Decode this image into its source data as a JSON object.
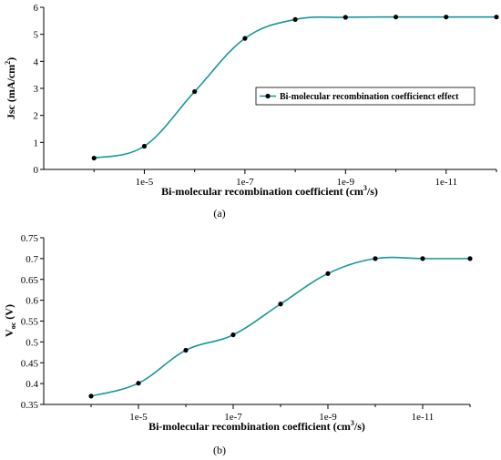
{
  "chart_data": [
    {
      "type": "line",
      "panel_label": "(a)",
      "xlabel_text": "Bi-molecular recombination coefficient (cm",
      "xlabel_sup": "3",
      "xlabel_tail": "/s)",
      "ylabel_text": "Jsc (mA/cm",
      "ylabel_sup": "2",
      "ylabel_tail": ")",
      "x": [
        -4,
        -5,
        -6,
        -7,
        -8,
        -9,
        -10,
        -11,
        -12
      ],
      "x_ticks": [
        {
          "value": -5,
          "label": "1e-5"
        },
        {
          "value": -7,
          "label": "1e-7"
        },
        {
          "value": -9,
          "label": "1e-9"
        },
        {
          "value": -11,
          "label": "1e-11"
        }
      ],
      "xlim": [
        -3,
        -12
      ],
      "ylim": [
        0,
        6
      ],
      "y_ticks": [
        "0",
        "1",
        "2",
        "3",
        "4",
        "5",
        "6"
      ],
      "series": [
        {
          "name": "Bi-molecular recombination coefficienct effect",
          "values": [
            0.42,
            0.86,
            2.88,
            4.85,
            5.55,
            5.63,
            5.64,
            5.64,
            5.64
          ]
        }
      ],
      "legend": "right-middle",
      "grid": false,
      "color": "#17969b"
    },
    {
      "type": "line",
      "panel_label": "(b)",
      "xlabel_text": "Bi-molecular recombination coefficient (cm",
      "xlabel_sup": "3",
      "xlabel_tail": "/s)",
      "ylabel_text": "V",
      "ylabel_sub": "oc",
      "ylabel_tail": " (V)",
      "x": [
        -4,
        -5,
        -6,
        -7,
        -8,
        -9,
        -10,
        -11,
        -12
      ],
      "x_ticks": [
        {
          "value": -5,
          "label": "1e-5"
        },
        {
          "value": -7,
          "label": "1e-7"
        },
        {
          "value": -9,
          "label": "1e-9"
        },
        {
          "value": -11,
          "label": "1e-11"
        }
      ],
      "xlim": [
        -3,
        -12
      ],
      "ylim": [
        0.35,
        0.75
      ],
      "y_ticks": [
        "0.35",
        "0.4",
        "0.45",
        "0.5",
        "0.55",
        "0.6",
        "0.65",
        "0.7",
        "0.75"
      ],
      "series": [
        {
          "values": [
            0.37,
            0.401,
            0.48,
            0.517,
            0.591,
            0.664,
            0.7,
            0.7,
            0.7
          ]
        }
      ],
      "grid": false,
      "color": "#17969b"
    }
  ]
}
